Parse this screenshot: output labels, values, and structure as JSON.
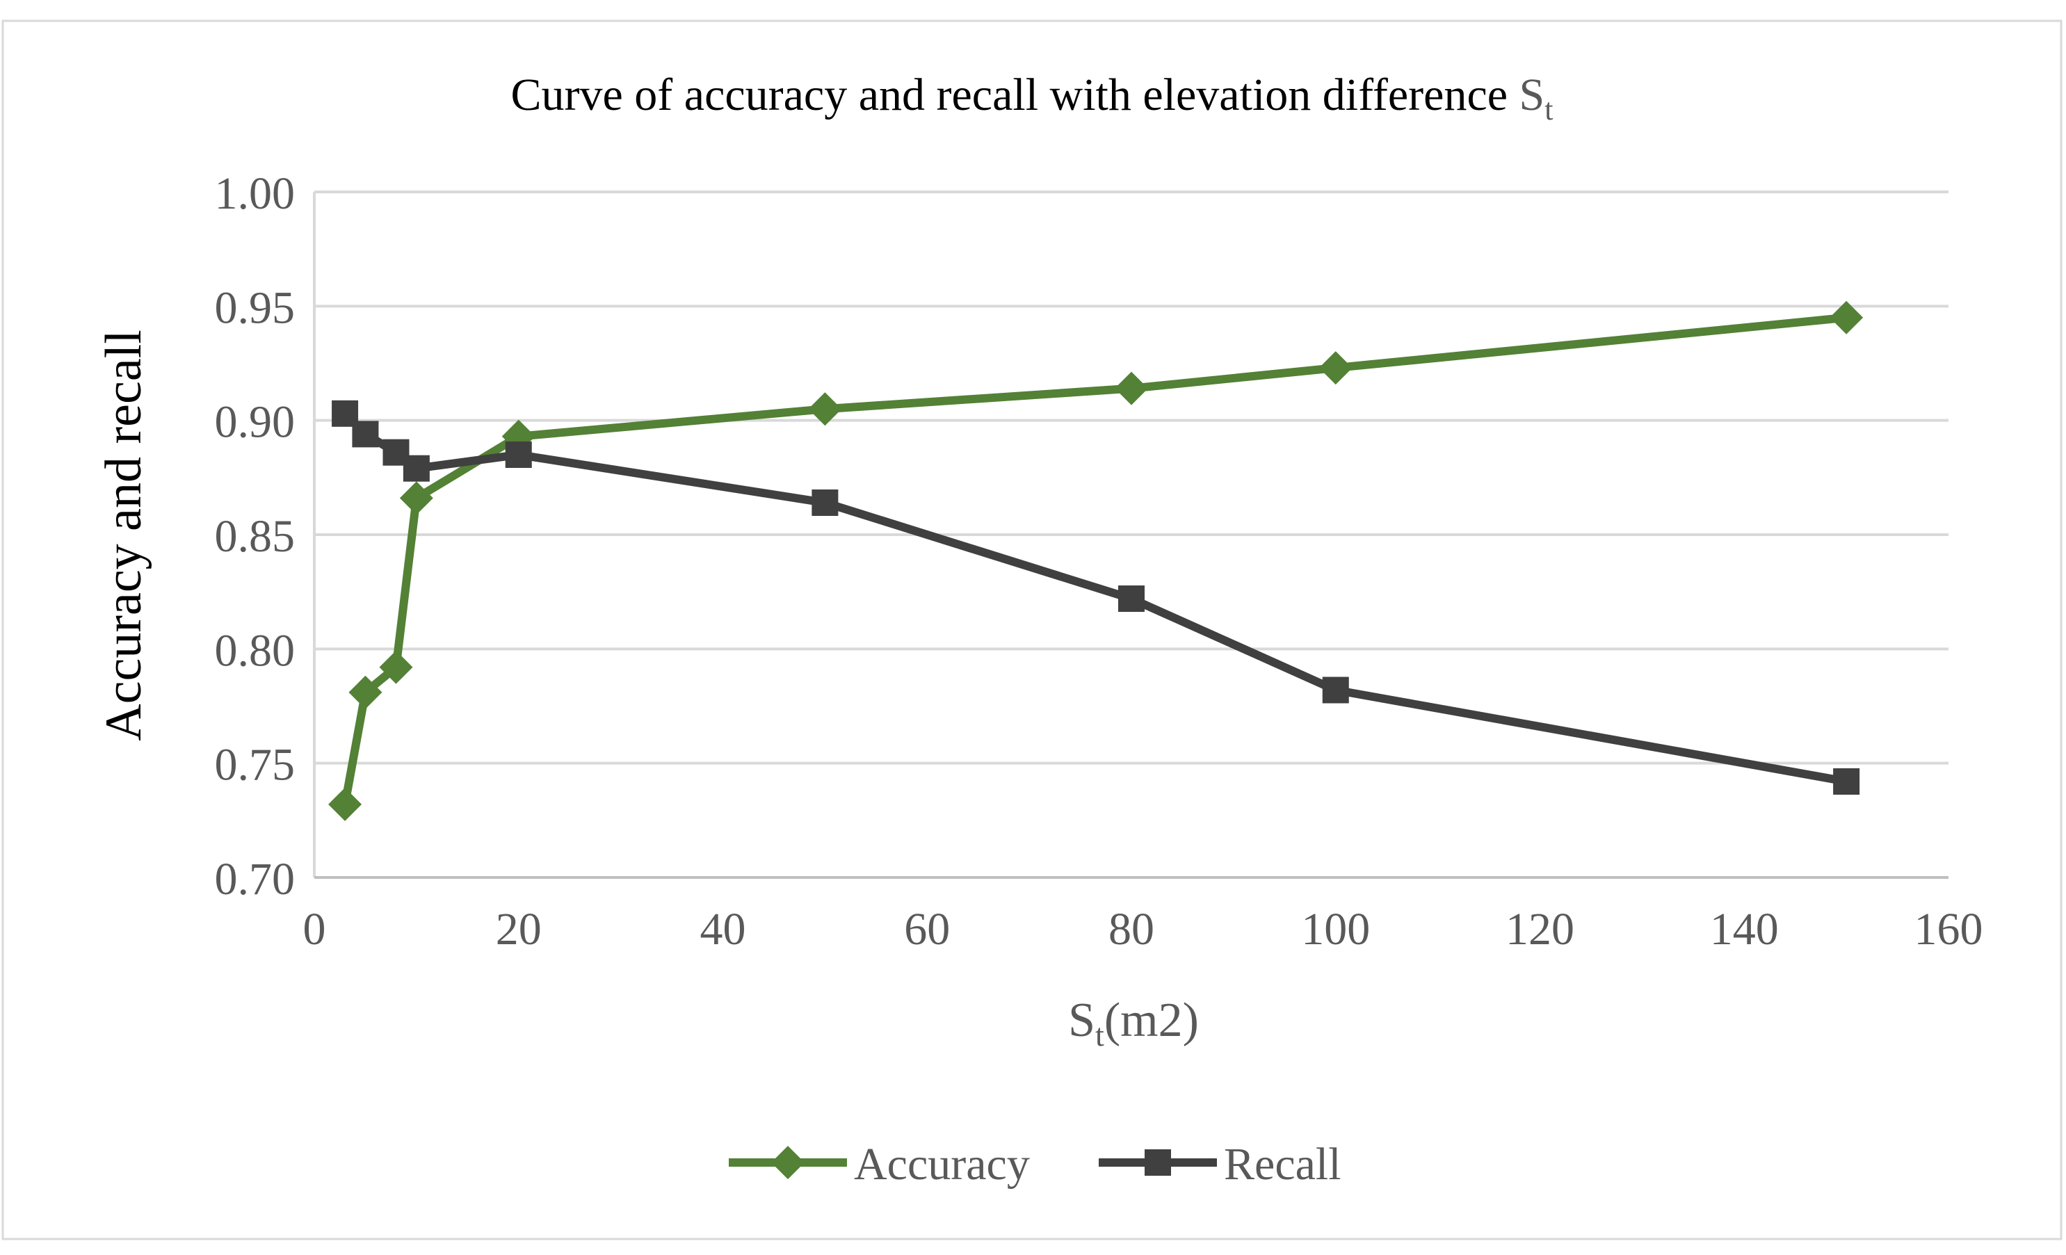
{
  "chart_data": {
    "type": "line",
    "title": "Curve of accuracy and recall with elevation difference ",
    "title_symbol": "S",
    "title_subscript": "t",
    "xlabel_symbol": "S",
    "xlabel_subscript": "t",
    "xlabel_suffix": "(m2)",
    "ylabel": "Accuracy and recall",
    "xlim": [
      0,
      160
    ],
    "ylim": [
      0.7,
      1.0
    ],
    "xticks": [
      0,
      20,
      40,
      60,
      80,
      100,
      120,
      140,
      160
    ],
    "yticks": [
      "0.70",
      "0.75",
      "0.80",
      "0.85",
      "0.90",
      "0.95",
      "1.00"
    ],
    "ytick_values": [
      0.7,
      0.75,
      0.8,
      0.85,
      0.9,
      0.95,
      1.0
    ],
    "grid": "horizontal",
    "legend_position": "bottom-center",
    "series": [
      {
        "name": "Accuracy",
        "color": "#538135",
        "marker": "diamond",
        "x": [
          3,
          5,
          8,
          10,
          20,
          50,
          80,
          100,
          150
        ],
        "y": [
          0.732,
          0.781,
          0.792,
          0.866,
          0.893,
          0.905,
          0.914,
          0.923,
          0.945
        ]
      },
      {
        "name": "Recall",
        "color": "#404040",
        "marker": "square",
        "x": [
          3,
          5,
          8,
          10,
          20,
          50,
          80,
          100,
          150
        ],
        "y": [
          0.903,
          0.894,
          0.886,
          0.879,
          0.885,
          0.864,
          0.822,
          0.782,
          0.742
        ]
      }
    ]
  }
}
